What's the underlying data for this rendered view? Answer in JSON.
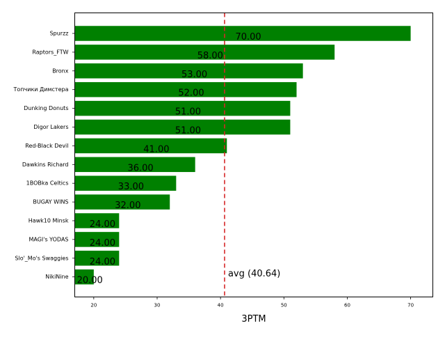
{
  "chart_data": {
    "type": "bar",
    "orientation": "horizontal",
    "categories": [
      "Spurzz",
      "Raptors_FTW",
      "Bronx",
      "Топчики Димстера",
      "Dunking Donuts",
      "Digor Lakers",
      "Red-Black Devil",
      "Dawkins Richard",
      "1BOBka Celtics",
      "BUGAY WINS",
      "Hawk10 Minsk",
      "MAGI's YODAS",
      "Slo'_Mo's Swaggies",
      "NikiNine"
    ],
    "values": [
      70,
      58,
      53,
      52,
      51,
      51,
      41,
      36,
      33,
      32,
      24,
      24,
      24,
      20
    ],
    "value_labels": [
      "70.00",
      "58.00",
      "53.00",
      "52.00",
      "51.00",
      "51.00",
      "41.00",
      "36.00",
      "33.00",
      "32.00",
      "24.00",
      "24.00",
      "24.00",
      "20.00"
    ],
    "xlabel": "3PTM",
    "xlim": [
      17,
      73.5
    ],
    "xticks": [
      20,
      30,
      40,
      50,
      60,
      70
    ],
    "bar_color": "#008000",
    "average": {
      "value": 40.64,
      "label": "avg (40.64)",
      "color": "#d62728",
      "style": "dashed"
    },
    "grid": false
  }
}
